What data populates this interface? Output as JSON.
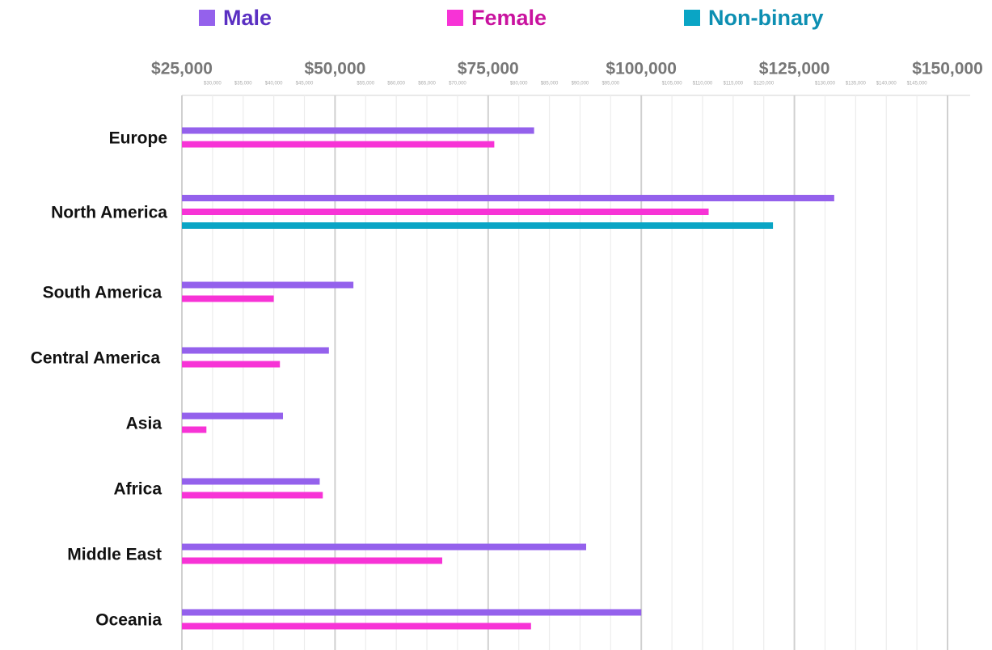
{
  "chart_data": {
    "type": "bar",
    "orientation": "horizontal",
    "categories": [
      "Europe",
      "North America",
      "South America",
      "Central America",
      "Asia",
      "Africa",
      "Middle East",
      "Oceania"
    ],
    "series": [
      {
        "name": "Male",
        "color": "#9461ec",
        "label_color": "#5a2fc2",
        "values": [
          82500,
          131500,
          53000,
          49000,
          41500,
          47500,
          91000,
          100000
        ]
      },
      {
        "name": "Female",
        "color": "#f733d6",
        "label_color": "#c9139f",
        "values": [
          76000,
          111000,
          40000,
          41000,
          29000,
          48000,
          67500,
          82000
        ]
      },
      {
        "name": "Non-binary",
        "color": "#0aa5c5",
        "label_color": "#0d8fb2",
        "values": [
          null,
          121500,
          null,
          null,
          null,
          null,
          null,
          null
        ]
      }
    ],
    "xlim": [
      25000,
      150000
    ],
    "xticks": [
      {
        "value": 25000,
        "label": "$25,000"
      },
      {
        "value": 50000,
        "label": "$50,000"
      },
      {
        "value": 75000,
        "label": "$75,000"
      },
      {
        "value": 100000,
        "label": "$100,000"
      },
      {
        "value": 125000,
        "label": "$125,000"
      },
      {
        "value": 150000,
        "label": "$150,000"
      }
    ],
    "xminorticks": [
      {
        "value": 30000,
        "label": "$30,000"
      },
      {
        "value": 35000,
        "label": "$35,000"
      },
      {
        "value": 40000,
        "label": "$40,000"
      },
      {
        "value": 45000,
        "label": "$45,000"
      },
      {
        "value": 55000,
        "label": "$55,000"
      },
      {
        "value": 60000,
        "label": "$60,000"
      },
      {
        "value": 65000,
        "label": "$65,000"
      },
      {
        "value": 70000,
        "label": "$70,000"
      },
      {
        "value": 80000,
        "label": "$80,000"
      },
      {
        "value": 85000,
        "label": "$85,000"
      },
      {
        "value": 90000,
        "label": "$90,000"
      },
      {
        "value": 95000,
        "label": "$95,000"
      },
      {
        "value": 105000,
        "label": "$105,000"
      },
      {
        "value": 110000,
        "label": "$110,000"
      },
      {
        "value": 115000,
        "label": "$115,000"
      },
      {
        "value": 120000,
        "label": "$120,000"
      },
      {
        "value": 130000,
        "label": "$130,000"
      },
      {
        "value": 135000,
        "label": "$135,000"
      },
      {
        "value": 140000,
        "label": "$140,000"
      },
      {
        "value": 145000,
        "label": "$145,000"
      }
    ],
    "grid": true,
    "legend": "top"
  }
}
